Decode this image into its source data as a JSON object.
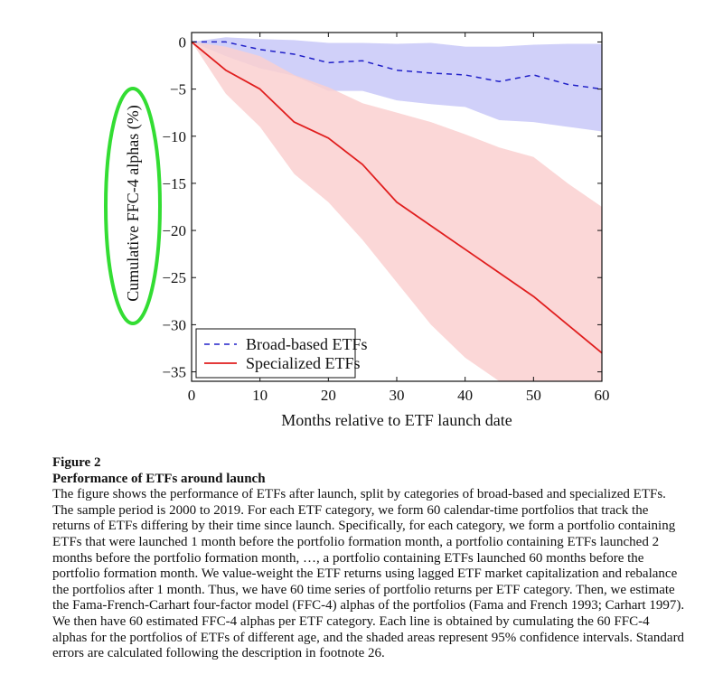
{
  "chart_data": {
    "type": "line",
    "title": "",
    "xlabel": "Months relative to ETF launch date",
    "ylabel": "Cumulative FFC-4 alphas (%)",
    "xlim": [
      0,
      60
    ],
    "ylim": [
      -36,
      1
    ],
    "xticks": [
      0,
      10,
      20,
      30,
      40,
      50,
      60
    ],
    "yticks": [
      0,
      -5,
      -10,
      -15,
      -20,
      -25,
      -30,
      -35
    ],
    "x": [
      0,
      5,
      10,
      15,
      20,
      25,
      30,
      35,
      40,
      45,
      50,
      55,
      60
    ],
    "legend_position": "bottom-left",
    "series": [
      {
        "name": "Broad-based ETFs",
        "style": "dashed",
        "color": "#2020c8",
        "band_color": "#c8c8f8",
        "values": [
          0,
          0,
          -0.8,
          -1.3,
          -2.2,
          -2.0,
          -3.0,
          -3.3,
          -3.5,
          -4.2,
          -3.5,
          -4.5,
          -5.0
        ],
        "ci_upper": [
          0,
          0.5,
          0.3,
          0.2,
          -0.1,
          -0.1,
          -0.2,
          -0.1,
          -0.5,
          -0.5,
          -0.3,
          -0.2,
          -0.2
        ],
        "ci_lower": [
          0,
          -1.5,
          -2.8,
          -3.6,
          -5.2,
          -5.2,
          -6.2,
          -6.6,
          -6.9,
          -8.3,
          -8.5,
          -9.0,
          -9.5
        ]
      },
      {
        "name": "Specialized ETFs",
        "style": "solid",
        "color": "#e01e1e",
        "band_color": "#fad0d0",
        "values": [
          0,
          -3.0,
          -5.0,
          -8.5,
          -10.2,
          -13.0,
          -17.0,
          -19.5,
          -22.0,
          -24.5,
          -27.0,
          -30.0,
          -33.0
        ],
        "ci_upper": [
          0,
          -0.5,
          -1.5,
          -3.5,
          -4.8,
          -6.5,
          -7.5,
          -8.5,
          -9.8,
          -11.2,
          -12.2,
          -15.0,
          -17.5
        ],
        "ci_lower": [
          0,
          -5.5,
          -9.0,
          -14.0,
          -17.0,
          -21.0,
          -25.5,
          -30.0,
          -33.5,
          -36.0,
          -36.0,
          -36.0,
          -36.0
        ]
      }
    ]
  },
  "caption": {
    "label": "Figure 2",
    "title": "Performance of ETFs around launch",
    "text": "The figure shows the performance of ETFs after launch, split by categories of broad-based and specialized ETFs. The sample period is 2000 to 2019. For each ETF category, we form 60 calendar-time portfolios that track the returns of ETFs differing by their time since launch. Specifically, for each category, we form a portfolio containing ETFs that were launched 1 month before the portfolio formation month, a portfolio containing ETFs launched 2 months before the portfolio formation month, …, a portfolio containing ETFs launched 60 months before the portfolio formation month. We value-weight the ETF returns using lagged ETF market capitalization and rebalance the portfolios after 1 month. Thus, we have 60 time series of portfolio returns per ETF category. Then, we estimate the Fama-French-Carhart four-factor model (FFC-4) alphas of the portfolios (Fama and French 1993; Carhart 1997). We then have 60 estimated FFC-4 alphas per ETF category. Each line is obtained by cumulating the 60 FFC-4 alphas for the portfolios of ETFs of different age, and the shaded areas represent 95% confidence intervals. Standard errors are calculated following the description in footnote 26."
  },
  "annotation": {
    "color": "#33dd33",
    "target": "y-axis label"
  }
}
